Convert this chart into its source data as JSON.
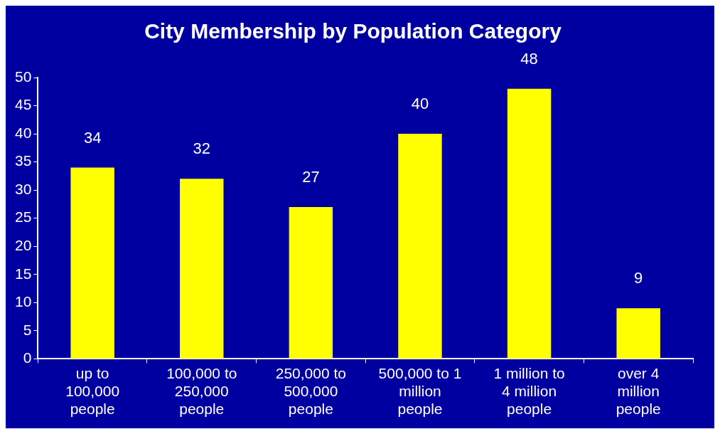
{
  "chart_data": {
    "type": "bar",
    "title": "City Membership by Population Category",
    "categories": [
      "up to 100,000 people",
      "100,000 to 250,000 people",
      "250,000 to 500,000 people",
      "500,000 to 1 million people",
      "1 million to 4 million people",
      "over 4 million people"
    ],
    "values": [
      34,
      32,
      27,
      40,
      48,
      9
    ],
    "color": "#ffff00",
    "ylim": [
      0,
      50
    ],
    "yticks": [
      0,
      5,
      10,
      15,
      20,
      25,
      30,
      35,
      40,
      45,
      50
    ],
    "grid": false,
    "legend": false,
    "data_labels": true
  }
}
